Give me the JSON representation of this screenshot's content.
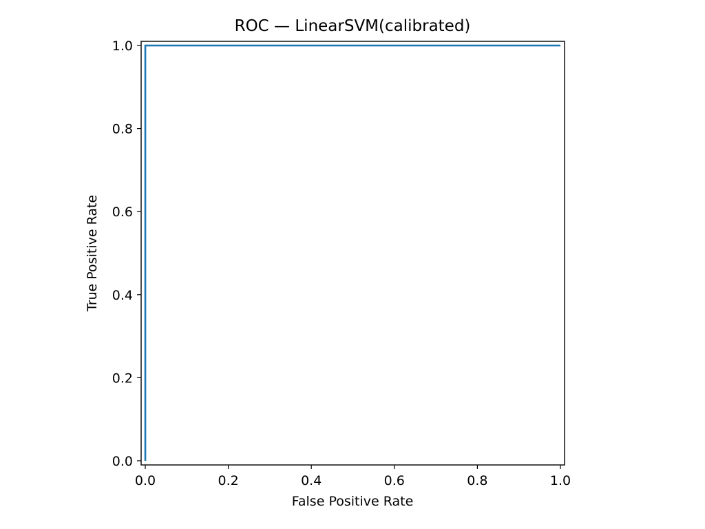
{
  "chart_data": {
    "type": "line",
    "title": "ROC — LinearSVM(calibrated)",
    "xlabel": "False Positive Rate",
    "ylabel": "True Positive Rate",
    "xlim": [
      -0.01,
      1.01
    ],
    "ylim": [
      -0.01,
      1.01
    ],
    "grid": false,
    "xticks": [
      0.0,
      0.2,
      0.4,
      0.6,
      0.8,
      1.0
    ],
    "xtick_labels": [
      "0.0",
      "0.2",
      "0.4",
      "0.6",
      "0.8",
      "1.0"
    ],
    "yticks": [
      0.0,
      0.2,
      0.4,
      0.6,
      0.8,
      1.0
    ],
    "ytick_labels": [
      "0.0",
      "0.2",
      "0.4",
      "0.6",
      "0.8",
      "1.0"
    ],
    "series": [
      {
        "color": "#1f77b4",
        "x": [
          0.0,
          0.0,
          1.0
        ],
        "y": [
          0.0,
          1.0,
          1.0
        ]
      }
    ]
  }
}
